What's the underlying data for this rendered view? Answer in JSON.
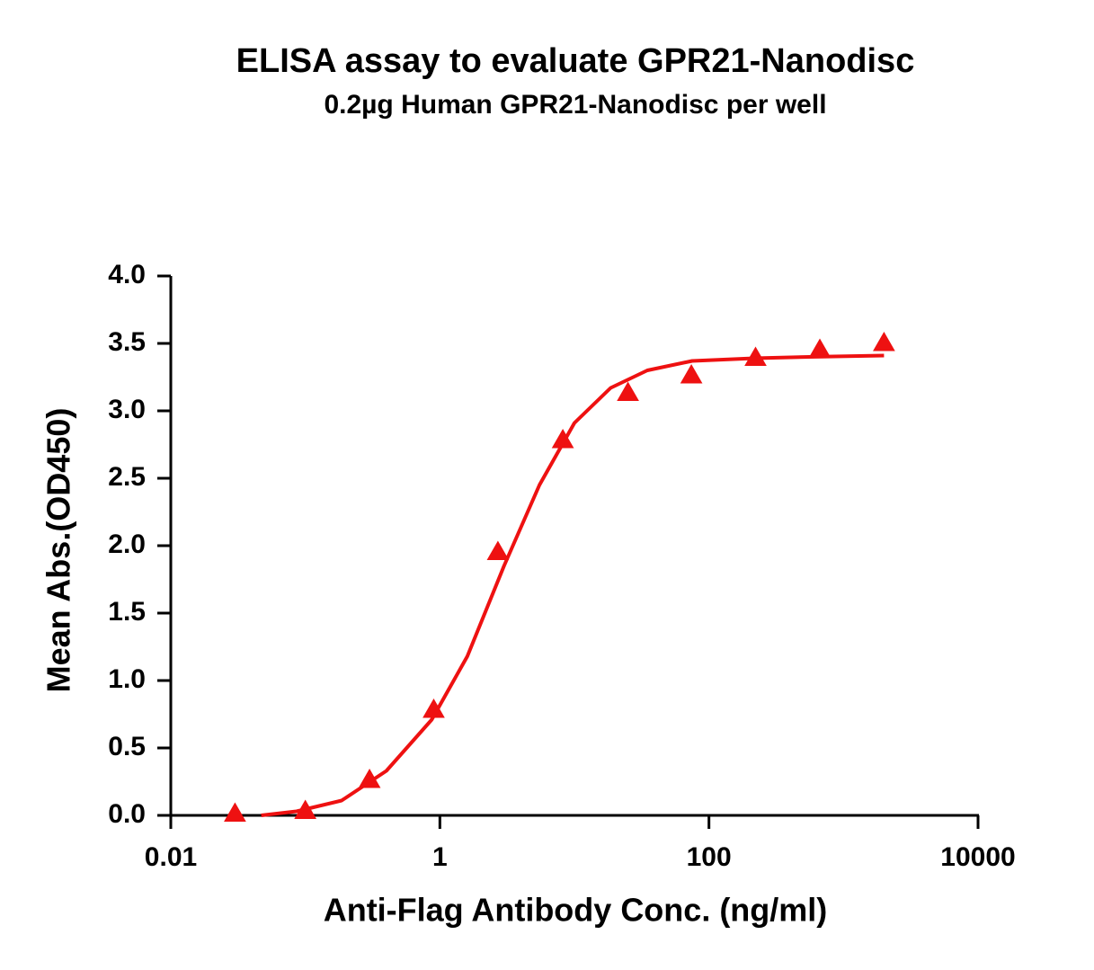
{
  "chart_data": {
    "type": "scatter",
    "title": "ELISA assay to evaluate GPR21-Nanodisc",
    "subtitle": "0.2µg Human GPR21-Nanodisc per well",
    "x_label": "Anti-Flag Antibody Conc. (ng/ml)",
    "y_label": "Mean Abs.(OD450)",
    "x_scale": "log",
    "xlim": [
      0.01,
      10000
    ],
    "xticks": [
      0.01,
      1,
      100,
      10000
    ],
    "ylim": [
      0,
      4
    ],
    "yticks": [
      {
        "value": 0,
        "label": "0.0"
      },
      0.5,
      {
        "value": 1,
        "label": "1.0"
      },
      1.5,
      {
        "value": 2,
        "label": "2.0"
      },
      2.5,
      {
        "value": 3,
        "label": "3.0"
      },
      3.5,
      {
        "value": 4,
        "label": "4.0"
      }
    ],
    "series": [
      {
        "type": "scatter",
        "marker": "triangle",
        "color": "#ee1111",
        "x": [
          0.03,
          0.1,
          0.3,
          0.9,
          2.7,
          8.2,
          25,
          74,
          222,
          667,
          2000
        ],
        "values": [
          0.01,
          0.03,
          0.26,
          0.78,
          1.95,
          2.78,
          3.13,
          3.26,
          3.39,
          3.45,
          3.5
        ]
      },
      {
        "type": "line",
        "color": "#ee1111",
        "x": [
          0.047,
          0.086,
          0.186,
          0.4,
          0.87,
          1.6,
          3.0,
          5.5,
          10,
          18.6,
          34.8,
          75,
          218,
          556,
          2000
        ],
        "values": [
          0.0,
          0.03,
          0.11,
          0.33,
          0.71,
          1.18,
          1.85,
          2.45,
          2.91,
          3.17,
          3.3,
          3.37,
          3.39,
          3.4,
          3.41
        ]
      }
    ]
  }
}
